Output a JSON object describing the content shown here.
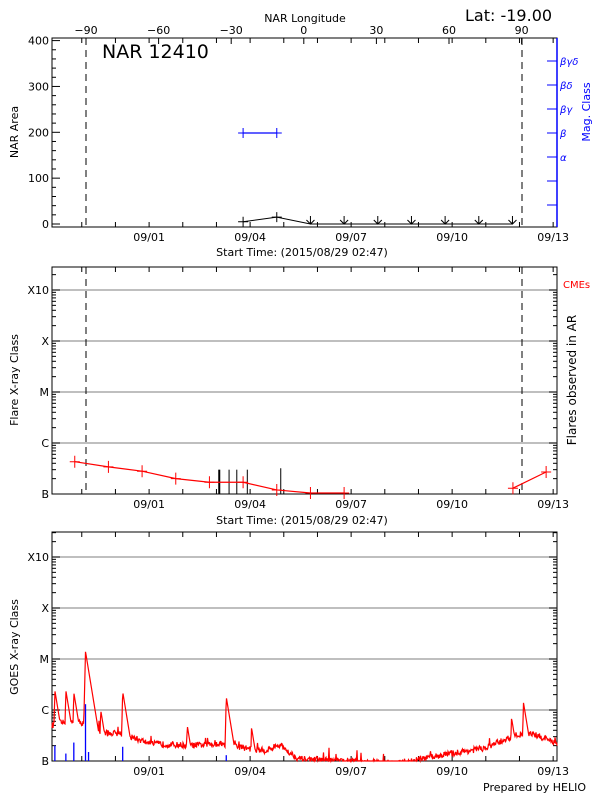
{
  "header": {
    "lat_label": "Lat: -19.00",
    "top_axis_title": "NAR Longitude",
    "region_label": "NAR 12410",
    "footer": "Prepared by HELIO"
  },
  "chart_data": [
    {
      "type": "line",
      "panel": "nar-area",
      "ylabel": "NAR Area",
      "right_ylabel": "Mag. Class",
      "xlabel": "Start Time: (2015/08/29 02:47)",
      "xlim": [
        "2015-08-29T02:47",
        "2015-09-13T03:30"
      ],
      "x_tick_labels": [
        {
          "t": "2015-09-01T00:00",
          "label": "09/01"
        },
        {
          "t": "2015-09-04T00:00",
          "label": "09/04"
        },
        {
          "t": "2015-09-07T00:00",
          "label": "09/07"
        },
        {
          "t": "2015-09-10T00:00",
          "label": "09/10"
        },
        {
          "t": "2015-09-13T00:00",
          "label": "09/13"
        }
      ],
      "ylim": [
        0,
        400
      ],
      "y_tick_labels": [
        "0",
        "100",
        "200",
        "300",
        "400"
      ],
      "top_axis": {
        "title": "NAR Longitude",
        "tick_labels": [
          "-90",
          "-60",
          "-30",
          "0",
          "30",
          "60",
          "90"
        ]
      },
      "limb_lines_longitude": [
        -90,
        90
      ],
      "mag_class_ticks": [
        "βγδ",
        "βδ",
        "βγ",
        "β",
        "α",
        "",
        ""
      ],
      "area_series": [
        {
          "t": "2015-09-03T19:00",
          "area": 5,
          "marker": "plus"
        },
        {
          "t": "2015-09-04T19:00",
          "area": 15,
          "marker": "plus"
        },
        {
          "t": "2015-09-05T19:00",
          "area": 0,
          "marker": "arrow"
        },
        {
          "t": "2015-09-06T19:00",
          "area": 0,
          "marker": "arrow"
        },
        {
          "t": "2015-09-07T19:00",
          "area": 0,
          "marker": "arrow"
        },
        {
          "t": "2015-09-08T19:00",
          "area": 0,
          "marker": "arrow"
        },
        {
          "t": "2015-09-09T19:00",
          "area": 0,
          "marker": "arrow"
        },
        {
          "t": "2015-09-10T19:00",
          "area": 0,
          "marker": "arrow"
        },
        {
          "t": "2015-09-11T19:00",
          "area": 0,
          "marker": "arrow"
        }
      ],
      "mag_class_series": [
        {
          "t": "2015-09-03T19:00",
          "class": "β"
        },
        {
          "t": "2015-09-04T19:00",
          "class": "β"
        }
      ],
      "colors": {
        "area": "#000000",
        "mag_class": "#0000ff"
      }
    },
    {
      "type": "line",
      "panel": "flare-class",
      "ylabel": "Flare X-ray Class",
      "right_ylabel": "Flares observed in AR",
      "xlabel": "Start Time: (2015/08/29 02:47)",
      "y_scale": "log",
      "y_tick_labels": [
        "B",
        "C",
        "M",
        "X",
        "X10"
      ],
      "grid": true,
      "legend": {
        "label": "CMEs",
        "placement": "top-right",
        "color": "#ff0000"
      },
      "series": [
        {
          "name": "CMEs",
          "color": "#ff0000",
          "segments": [
            [
              {
                "t": "2015-08-29T19:00",
                "class": "B4.3"
              },
              {
                "t": "2015-08-30T19:00",
                "class": "B3.4"
              },
              {
                "t": "2015-08-31T19:00",
                "class": "B2.8"
              },
              {
                "t": "2015-09-01T19:00",
                "class": "B2.0"
              },
              {
                "t": "2015-09-02T19:00",
                "class": "B1.7"
              },
              {
                "t": "2015-09-03T19:00",
                "class": "B1.7"
              },
              {
                "t": "2015-09-04T19:00",
                "class": "B1.2"
              },
              {
                "t": "2015-09-05T19:00",
                "class": "B1.0"
              },
              {
                "t": "2015-09-06T19:00",
                "class": "B1.0"
              }
            ],
            [
              {
                "t": "2015-09-11T19:20",
                "class": "B1.3"
              },
              {
                "t": "2015-09-12T19:00",
                "class": "B2.7"
              }
            ]
          ]
        }
      ],
      "flare_events": [
        {
          "t": "2015-09-03T02:00",
          "class": "B3.0",
          "bold": true
        },
        {
          "t": "2015-09-03T09:00",
          "class": "B3.0"
        },
        {
          "t": "2015-09-03T14:30",
          "class": "B3.0"
        },
        {
          "t": "2015-09-03T22:00",
          "class": "B3.0"
        },
        {
          "t": "2015-09-04T21:50",
          "class": "B3.2"
        }
      ]
    },
    {
      "type": "line",
      "panel": "goes",
      "ylabel": "GOES X-ray Class",
      "y_scale": "log",
      "y_tick_labels": [
        "B",
        "C",
        "M",
        "X",
        "X10"
      ],
      "grid": true,
      "background": [
        {
          "t": "2015-08-29T02:47",
          "class": "B5.0"
        },
        {
          "t": "2015-08-29T08:30",
          "class": "B5.6"
        },
        {
          "t": "2015-08-30T03:00",
          "class": "B5.6"
        },
        {
          "t": "2015-08-30T09:30",
          "class": "B3.5"
        },
        {
          "t": "2015-08-31T03:20",
          "class": "B3.5"
        },
        {
          "t": "2015-09-01T00:50",
          "class": "B2.2"
        },
        {
          "t": "2015-09-02T05:30",
          "class": "B2.0"
        },
        {
          "t": "2015-09-03T02:50",
          "class": "B2.2"
        },
        {
          "t": "2015-09-03T20:30",
          "class": "B1.8"
        },
        {
          "t": "2015-09-04T11:00",
          "class": "B1.6"
        },
        {
          "t": "2015-09-04T21:50",
          "class": "B2.0"
        },
        {
          "t": "2015-09-05T10:30",
          "class": "B1.1"
        },
        {
          "t": "2015-09-06T16:30",
          "class": "B1.0"
        },
        {
          "t": "2015-09-08T11:30",
          "class": "B0.9"
        },
        {
          "t": "2015-09-09T16:00",
          "class": "B1.3"
        },
        {
          "t": "2015-09-10T23:50",
          "class": "B1.8"
        },
        {
          "t": "2015-09-11T21:00",
          "class": "B3.2"
        },
        {
          "t": "2015-09-12T08:00",
          "class": "B3.5"
        },
        {
          "t": "2015-09-13T03:30",
          "class": "B2.2"
        }
      ],
      "peaks": [
        {
          "t": "2015-08-29T04:50",
          "class": "C2.4"
        },
        {
          "t": "2015-08-29T12:40",
          "class": "C2.4"
        },
        {
          "t": "2015-08-29T18:20",
          "class": "C2.2"
        },
        {
          "t": "2015-08-30T02:40",
          "class": "M1.4"
        },
        {
          "t": "2015-08-30T09:10",
          "class": "C1.1"
        },
        {
          "t": "2015-08-30T13:30",
          "class": "C1.0"
        },
        {
          "t": "2015-08-31T05:10",
          "class": "C2.3"
        },
        {
          "t": "2015-09-02T03:10",
          "class": "B5.0"
        },
        {
          "t": "2015-09-03T07:00",
          "class": "C1.8"
        },
        {
          "t": "2015-09-04T01:00",
          "class": "B4.5"
        },
        {
          "t": "2015-09-11T18:20",
          "class": "B7.0"
        },
        {
          "t": "2015-09-12T02:50",
          "class": "C1.4"
        }
      ],
      "low_channel_spikes": [
        {
          "t": "2015-08-29T04:50",
          "class": "B2.0"
        },
        {
          "t": "2015-08-29T12:40",
          "class": "B1.4"
        },
        {
          "t": "2015-08-29T18:20",
          "class": "B2.3"
        },
        {
          "t": "2015-08-30T02:40",
          "class": "C1.3"
        },
        {
          "t": "2015-08-30T04:50",
          "class": "B1.5"
        },
        {
          "t": "2015-08-31T05:10",
          "class": "B1.9"
        },
        {
          "t": "2015-09-03T07:00",
          "class": "B1.3"
        }
      ],
      "colors": {
        "long_channel": "#ff0000",
        "short_channel": "#0000ff"
      }
    }
  ]
}
